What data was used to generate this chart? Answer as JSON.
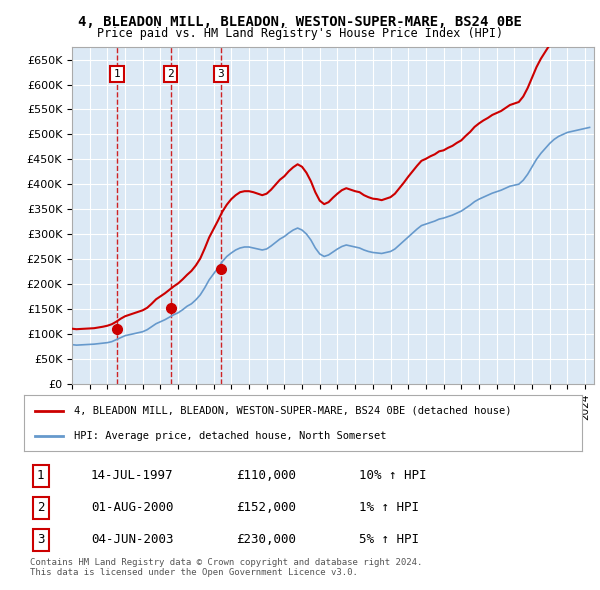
{
  "title": "4, BLEADON MILL, BLEADON, WESTON-SUPER-MARE, BS24 0BE",
  "subtitle": "Price paid vs. HM Land Registry's House Price Index (HPI)",
  "bg_color": "#dce9f5",
  "plot_bg_color": "#dce9f5",
  "grid_color": "#ffffff",
  "sale_color": "#cc0000",
  "hpi_color": "#6699cc",
  "ylim": [
    0,
    675000
  ],
  "yticks": [
    0,
    50000,
    100000,
    150000,
    200000,
    250000,
    300000,
    350000,
    400000,
    450000,
    500000,
    550000,
    600000,
    650000
  ],
  "transactions": [
    {
      "num": 1,
      "date": "14-JUL-1997",
      "price": 110000,
      "pct": "10%",
      "dir": "↑",
      "year": 1997.54
    },
    {
      "num": 2,
      "date": "01-AUG-2000",
      "price": 152000,
      "pct": "1%",
      "dir": "↑",
      "year": 2000.58
    },
    {
      "num": 3,
      "date": "04-JUN-2003",
      "price": 230000,
      "pct": "5%",
      "dir": "↑",
      "year": 2003.42
    }
  ],
  "legend_sale_label": "4, BLEADON MILL, BLEADON, WESTON-SUPER-MARE, BS24 0BE (detached house)",
  "legend_hpi_label": "HPI: Average price, detached house, North Somerset",
  "footer": "Contains HM Land Registry data © Crown copyright and database right 2024.\nThis data is licensed under the Open Government Licence v3.0.",
  "hpi_data": {
    "years": [
      1995,
      1995.25,
      1995.5,
      1995.75,
      1996,
      1996.25,
      1996.5,
      1996.75,
      1997,
      1997.25,
      1997.5,
      1997.75,
      1998,
      1998.25,
      1998.5,
      1998.75,
      1999,
      1999.25,
      1999.5,
      1999.75,
      2000,
      2000.25,
      2000.5,
      2000.75,
      2001,
      2001.25,
      2001.5,
      2001.75,
      2002,
      2002.25,
      2002.5,
      2002.75,
      2003,
      2003.25,
      2003.5,
      2003.75,
      2004,
      2004.25,
      2004.5,
      2004.75,
      2005,
      2005.25,
      2005.5,
      2005.75,
      2006,
      2006.25,
      2006.5,
      2006.75,
      2007,
      2007.25,
      2007.5,
      2007.75,
      2008,
      2008.25,
      2008.5,
      2008.75,
      2009,
      2009.25,
      2009.5,
      2009.75,
      2010,
      2010.25,
      2010.5,
      2010.75,
      2011,
      2011.25,
      2011.5,
      2011.75,
      2012,
      2012.25,
      2012.5,
      2012.75,
      2013,
      2013.25,
      2013.5,
      2013.75,
      2014,
      2014.25,
      2014.5,
      2014.75,
      2015,
      2015.25,
      2015.5,
      2015.75,
      2016,
      2016.25,
      2016.5,
      2016.75,
      2017,
      2017.25,
      2017.5,
      2017.75,
      2018,
      2018.25,
      2018.5,
      2018.75,
      2019,
      2019.25,
      2019.5,
      2019.75,
      2020,
      2020.25,
      2020.5,
      2020.75,
      2021,
      2021.25,
      2021.5,
      2021.75,
      2022,
      2022.25,
      2022.5,
      2022.75,
      2023,
      2023.25,
      2023.5,
      2023.75,
      2024,
      2024.25
    ],
    "values": [
      78000,
      77000,
      77500,
      78000,
      78500,
      79000,
      80000,
      81000,
      82000,
      84000,
      88000,
      92000,
      96000,
      98000,
      100000,
      102000,
      104000,
      108000,
      114000,
      120000,
      124000,
      128000,
      133000,
      138000,
      142000,
      148000,
      155000,
      160000,
      168000,
      178000,
      192000,
      208000,
      220000,
      232000,
      245000,
      255000,
      262000,
      268000,
      272000,
      274000,
      274000,
      272000,
      270000,
      268000,
      270000,
      276000,
      283000,
      290000,
      295000,
      302000,
      308000,
      312000,
      308000,
      300000,
      288000,
      272000,
      260000,
      255000,
      258000,
      264000,
      270000,
      275000,
      278000,
      276000,
      274000,
      272000,
      268000,
      265000,
      263000,
      262000,
      261000,
      263000,
      265000,
      270000,
      278000,
      286000,
      294000,
      302000,
      310000,
      317000,
      320000,
      323000,
      326000,
      330000,
      332000,
      335000,
      338000,
      342000,
      346000,
      352000,
      358000,
      365000,
      370000,
      374000,
      378000,
      382000,
      385000,
      388000,
      392000,
      396000,
      398000,
      400000,
      408000,
      420000,
      435000,
      450000,
      462000,
      472000,
      482000,
      490000,
      496000,
      500000,
      504000,
      506000,
      508000,
      510000,
      512000,
      514000
    ]
  },
  "sale_hpi_data": {
    "years": [
      1995,
      1995.25,
      1995.5,
      1995.75,
      1996,
      1996.25,
      1996.5,
      1996.75,
      1997,
      1997.25,
      1997.5,
      1997.75,
      1998,
      1998.25,
      1998.5,
      1998.75,
      1999,
      1999.25,
      1999.5,
      1999.75,
      2000,
      2000.25,
      2000.5,
      2000.75,
      2001,
      2001.25,
      2001.5,
      2001.75,
      2002,
      2002.25,
      2002.5,
      2002.75,
      2003,
      2003.25,
      2003.5,
      2003.75,
      2004,
      2004.25,
      2004.5,
      2004.75,
      2005,
      2005.25,
      2005.5,
      2005.75,
      2006,
      2006.25,
      2006.5,
      2006.75,
      2007,
      2007.25,
      2007.5,
      2007.75,
      2008,
      2008.25,
      2008.5,
      2008.75,
      2009,
      2009.25,
      2009.5,
      2009.75,
      2010,
      2010.25,
      2010.5,
      2010.75,
      2011,
      2011.25,
      2011.5,
      2011.75,
      2012,
      2012.25,
      2012.5,
      2012.75,
      2013,
      2013.25,
      2013.5,
      2013.75,
      2014,
      2014.25,
      2014.5,
      2014.75,
      2015,
      2015.25,
      2015.5,
      2015.75,
      2016,
      2016.25,
      2016.5,
      2016.75,
      2017,
      2017.25,
      2017.5,
      2017.75,
      2018,
      2018.25,
      2018.5,
      2018.75,
      2019,
      2019.25,
      2019.5,
      2019.75,
      2020,
      2020.25,
      2020.5,
      2020.75,
      2021,
      2021.25,
      2021.5,
      2021.75,
      2022,
      2022.25,
      2022.5,
      2022.75,
      2023,
      2023.25,
      2023.5,
      2023.75,
      2024,
      2024.25
    ],
    "values": [
      110000,
      109000,
      109500,
      110000,
      110500,
      111000,
      112500,
      114000,
      116000,
      119000,
      124000,
      130000,
      135000,
      138000,
      141000,
      144000,
      147000,
      152000,
      160000,
      169000,
      175000,
      181000,
      188000,
      195000,
      201000,
      209000,
      218000,
      226000,
      237000,
      251000,
      271000,
      293000,
      310000,
      327000,
      345000,
      359000,
      370000,
      378000,
      384000,
      386000,
      386000,
      384000,
      381000,
      378000,
      381000,
      389000,
      399000,
      409000,
      416000,
      426000,
      434000,
      440000,
      435000,
      423000,
      406000,
      384000,
      367000,
      360000,
      364000,
      373000,
      381000,
      388000,
      392000,
      389000,
      386000,
      384000,
      378000,
      374000,
      371000,
      370000,
      368000,
      371000,
      374000,
      381000,
      392000,
      403000,
      415000,
      426000,
      437000,
      447000,
      451000,
      456000,
      460000,
      466000,
      468000,
      473000,
      477000,
      483000,
      488000,
      497000,
      505000,
      515000,
      522000,
      528000,
      533000,
      539000,
      543000,
      547000,
      553000,
      559000,
      562000,
      565000,
      576000,
      593000,
      614000,
      635000,
      652000,
      666000,
      680000,
      692000,
      700000,
      706000,
      711000,
      714000,
      717000,
      720000,
      723000,
      726000
    ]
  }
}
